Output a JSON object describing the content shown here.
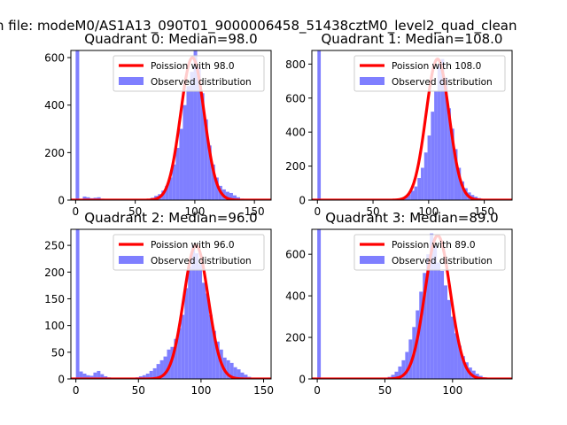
{
  "figure": {
    "suptitle": "n file: modeM0/AS1A13_090T01_9000006458_51438cztM0_level2_quad_clean",
    "hist_color": "#7f7fff",
    "fit_color": "#ff0000"
  },
  "chart_data": [
    {
      "type": "bar",
      "title": "Quadrant 0: Median=98.0",
      "median": 98.0,
      "xlim": [
        -4,
        164
      ],
      "ylim": [
        0,
        630
      ],
      "xticks": [
        0,
        50,
        100,
        150
      ],
      "yticks": [
        0,
        200,
        400,
        600
      ],
      "series": [
        {
          "name": "Poission with 98.0",
          "kind": "line",
          "mean": 98.0,
          "peak": 600
        },
        {
          "name": "Observed distribution",
          "kind": "histogram",
          "bin_width": 3.0,
          "x": [
            0,
            3,
            6,
            9,
            12,
            15,
            18,
            21,
            24,
            27,
            30,
            33,
            36,
            39,
            42,
            45,
            48,
            51,
            54,
            57,
            60,
            63,
            66,
            69,
            72,
            75,
            78,
            81,
            84,
            87,
            90,
            93,
            96,
            99,
            102,
            105,
            108,
            111,
            114,
            117,
            120,
            123,
            126,
            129,
            132,
            135,
            138,
            141,
            144,
            147,
            150,
            153,
            156
          ],
          "values": [
            630,
            5,
            15,
            12,
            8,
            10,
            12,
            6,
            4,
            2,
            2,
            1,
            1,
            1,
            1,
            1,
            1,
            2,
            2,
            3,
            5,
            10,
            18,
            25,
            40,
            60,
            95,
            150,
            220,
            300,
            400,
            480,
            540,
            630,
            560,
            450,
            340,
            230,
            150,
            95,
            60,
            45,
            35,
            30,
            20,
            12,
            6,
            3,
            2,
            1,
            1,
            0,
            0
          ]
        }
      ]
    },
    {
      "type": "bar",
      "title": "Quadrant 1: Median=108.0",
      "median": 108.0,
      "xlim": [
        -5,
        175
      ],
      "ylim": [
        0,
        880
      ],
      "xticks": [
        0,
        50,
        100,
        150
      ],
      "yticks": [
        0,
        200,
        400,
        600,
        800
      ],
      "series": [
        {
          "name": "Poission with 108.0",
          "kind": "line",
          "mean": 108.0,
          "peak": 830
        },
        {
          "name": "Observed distribution",
          "kind": "histogram",
          "bin_width": 3.0,
          "x": [
            0,
            3,
            6,
            9,
            12,
            15,
            18,
            21,
            24,
            27,
            30,
            33,
            36,
            39,
            42,
            45,
            48,
            51,
            54,
            57,
            60,
            63,
            66,
            69,
            72,
            75,
            78,
            81,
            84,
            87,
            90,
            93,
            96,
            99,
            102,
            105,
            108,
            111,
            114,
            117,
            120,
            123,
            126,
            129,
            132,
            135,
            138,
            141,
            144,
            147,
            150,
            153,
            156,
            159,
            162
          ],
          "values": [
            880,
            3,
            5,
            4,
            3,
            2,
            2,
            2,
            2,
            1,
            1,
            1,
            1,
            1,
            1,
            1,
            1,
            1,
            1,
            1,
            1,
            2,
            3,
            5,
            8,
            12,
            20,
            35,
            55,
            80,
            130,
            190,
            280,
            380,
            520,
            640,
            800,
            830,
            720,
            540,
            420,
            300,
            190,
            110,
            70,
            45,
            30,
            20,
            12,
            6,
            3,
            2,
            1,
            0,
            0
          ]
        }
      ]
    },
    {
      "type": "bar",
      "title": "Quadrant 2: Median=96.0",
      "median": 96.0,
      "xlim": [
        -4,
        156
      ],
      "ylim": [
        0,
        280
      ],
      "xticks": [
        0,
        50,
        100,
        150
      ],
      "yticks": [
        0,
        50,
        100,
        150,
        200,
        250
      ],
      "series": [
        {
          "name": "Poission with 96.0",
          "kind": "line",
          "mean": 96.0,
          "peak": 250
        },
        {
          "name": "Observed distribution",
          "kind": "histogram",
          "bin_width": 2.8,
          "x": [
            0,
            2.8,
            5.6,
            8.4,
            11.2,
            14,
            16.8,
            19.6,
            22.4,
            25.2,
            28,
            30.8,
            33.6,
            36.4,
            39.2,
            42,
            44.8,
            47.6,
            50.4,
            53.2,
            56,
            58.8,
            61.6,
            64.4,
            67.2,
            70,
            72.8,
            75.6,
            78.4,
            81.2,
            84,
            86.8,
            89.6,
            92.4,
            95.2,
            98,
            100.8,
            103.6,
            106.4,
            109.2,
            112,
            114.8,
            117.6,
            120.4,
            123.2,
            126,
            128.8,
            131.6,
            134.4,
            137.2,
            140,
            142.8
          ],
          "values": [
            280,
            14,
            10,
            7,
            6,
            12,
            15,
            9,
            5,
            3,
            2,
            2,
            1,
            1,
            1,
            1,
            1,
            3,
            5,
            7,
            10,
            15,
            20,
            28,
            35,
            42,
            55,
            60,
            75,
            95,
            120,
            170,
            210,
            250,
            235,
            215,
            180,
            160,
            120,
            90,
            70,
            55,
            40,
            35,
            30,
            22,
            18,
            12,
            8,
            4,
            2,
            1
          ]
        }
      ]
    },
    {
      "type": "bar",
      "title": "Quadrant 3: Median=89.0",
      "median": 89.0,
      "xlim": [
        -4,
        144
      ],
      "ylim": [
        0,
        720
      ],
      "xticks": [
        0,
        50,
        100
      ],
      "yticks": [
        0,
        200,
        400,
        600
      ],
      "series": [
        {
          "name": "Poission with 89.0",
          "kind": "line",
          "mean": 89.0,
          "peak": 690
        },
        {
          "name": "Observed distribution",
          "kind": "histogram",
          "bin_width": 2.6,
          "x": [
            0,
            2.6,
            5.2,
            7.8,
            10.4,
            13,
            15.6,
            18.2,
            20.8,
            23.4,
            26,
            28.6,
            31.2,
            33.8,
            36.4,
            39,
            41.6,
            44.2,
            46.8,
            49.4,
            52,
            54.6,
            57.2,
            59.8,
            62.4,
            65,
            67.6,
            70.2,
            72.8,
            75.4,
            78,
            80.6,
            83.2,
            85.8,
            88.4,
            91,
            93.6,
            96.2,
            98.8,
            101.4,
            104,
            106.6,
            109.2,
            111.8,
            114.4,
            117,
            119.6,
            122.2,
            124.8,
            127.4,
            130
          ],
          "values": [
            720,
            4,
            3,
            2,
            2,
            2,
            1,
            1,
            1,
            1,
            1,
            1,
            1,
            1,
            1,
            1,
            1,
            2,
            3,
            6,
            10,
            20,
            35,
            60,
            90,
            130,
            190,
            250,
            330,
            420,
            510,
            600,
            700,
            640,
            560,
            520,
            450,
            380,
            300,
            220,
            160,
            110,
            80,
            55,
            40,
            25,
            15,
            8,
            4,
            2,
            1
          ]
        }
      ]
    }
  ]
}
